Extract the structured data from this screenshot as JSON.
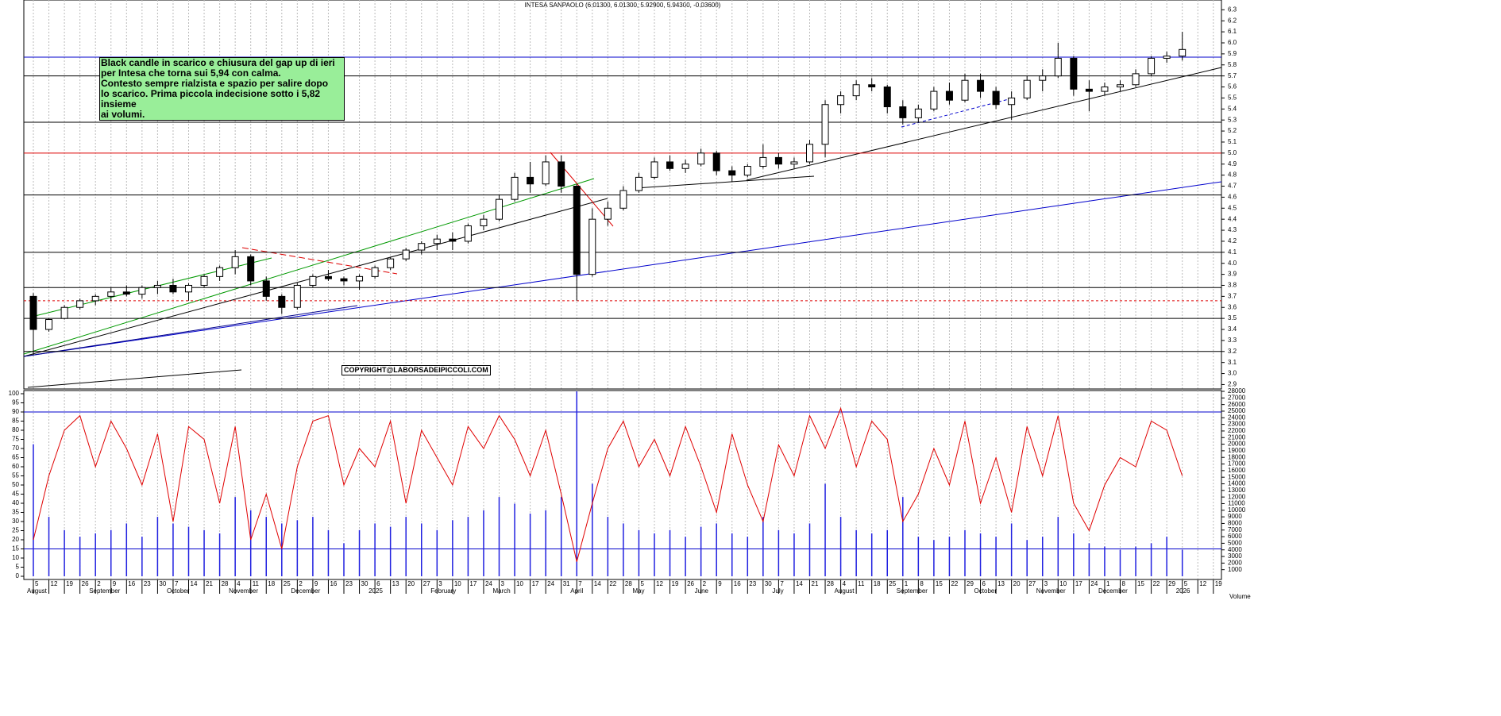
{
  "chart_data": {
    "type": "candlestick",
    "title": "INTESA SANPAOLO (6.01300, 6.01300, 5.92900, 5.94300, -0.03600)",
    "annotation": [
      "Black candle in scarico e chiusura del gap up di ieri",
      "per Intesa che torna sui 5,94 con calma.",
      "Contesto sempre rialzista e spazio per salire dopo",
      "lo scarico. Prima piccola indecisione sotto i 5,82 insieme",
      "ai volumi."
    ],
    "copyright": "COPYRIGHT@LABORSADEIPICCOLI.COM",
    "categories": [
      "5",
      "12",
      "19",
      "26",
      "2",
      "9",
      "16",
      "23",
      "30",
      "7",
      "14",
      "21",
      "28",
      "4",
      "11",
      "18",
      "25",
      "2",
      "9",
      "16",
      "23",
      "30",
      "6",
      "13",
      "20",
      "27",
      "3",
      "10",
      "17",
      "24",
      "3",
      "10",
      "17",
      "24",
      "31",
      "7",
      "14",
      "22",
      "28",
      "5",
      "12",
      "19",
      "26",
      "2",
      "9",
      "16",
      "23",
      "30",
      "7",
      "14",
      "21",
      "28",
      "4",
      "11",
      "18",
      "25",
      "1",
      "8",
      "15",
      "22",
      "29",
      "6",
      "13",
      "20",
      "27",
      "3",
      "10",
      "17",
      "24",
      "1",
      "8",
      "15",
      "22",
      "29",
      "5",
      "12",
      "19"
    ],
    "months": [
      "August",
      null,
      null,
      null,
      "September",
      null,
      null,
      null,
      null,
      "October",
      null,
      null,
      null,
      "November",
      null,
      null,
      null,
      "December",
      null,
      null,
      null,
      null,
      "2025",
      null,
      null,
      null,
      "February",
      null,
      null,
      null,
      "March",
      null,
      null,
      null,
      null,
      "April",
      null,
      null,
      null,
      "May",
      null,
      null,
      null,
      "June",
      null,
      null,
      null,
      null,
      "July",
      null,
      null,
      null,
      "August",
      null,
      null,
      null,
      "September",
      null,
      null,
      null,
      null,
      "October",
      null,
      null,
      null,
      "November",
      null,
      null,
      null,
      "December",
      null,
      null,
      null,
      null,
      "2026",
      null,
      null
    ],
    "open": [
      3.7,
      3.4,
      3.5,
      3.6,
      3.66,
      3.7,
      3.74,
      3.72,
      3.78,
      3.8,
      3.74,
      3.8,
      3.88,
      3.96,
      4.06,
      3.84,
      3.7,
      3.6,
      3.8,
      3.88,
      3.86,
      3.84,
      3.88,
      3.96,
      4.04,
      4.12,
      4.18,
      4.22,
      4.2,
      4.34,
      4.4,
      4.58,
      4.78,
      4.72,
      4.92,
      4.7,
      3.9,
      4.4,
      4.5,
      4.66,
      4.78,
      4.92,
      4.86,
      4.9,
      5.0,
      4.84,
      4.8,
      4.88,
      4.96,
      4.9,
      4.92,
      5.08,
      5.44,
      5.52,
      5.62,
      5.6,
      5.42,
      5.32,
      5.4,
      5.56,
      5.48,
      5.66,
      5.56,
      5.44,
      5.5,
      5.66,
      5.7,
      5.86,
      5.58,
      5.56,
      5.6,
      5.62,
      5.72,
      5.86,
      5.88,
      null,
      null
    ],
    "high": [
      3.73,
      3.5,
      3.62,
      3.68,
      3.72,
      3.78,
      3.8,
      3.8,
      3.84,
      3.86,
      3.82,
      3.9,
      3.98,
      4.12,
      4.08,
      3.88,
      3.72,
      3.82,
      3.9,
      3.94,
      3.88,
      3.9,
      3.98,
      4.06,
      4.14,
      4.2,
      4.26,
      4.28,
      4.36,
      4.44,
      4.62,
      4.82,
      4.92,
      4.98,
      4.98,
      4.72,
      4.5,
      4.56,
      4.7,
      4.82,
      4.96,
      4.98,
      4.94,
      5.04,
      5.02,
      4.88,
      4.9,
      5.08,
      5.0,
      4.96,
      5.12,
      5.48,
      5.56,
      5.66,
      5.68,
      5.62,
      5.48,
      5.44,
      5.6,
      5.64,
      5.72,
      5.72,
      5.6,
      5.56,
      5.7,
      5.76,
      6.0,
      5.88,
      5.66,
      5.64,
      5.66,
      5.76,
      5.88,
      5.92,
      6.1,
      null,
      null
    ],
    "low": [
      3.17,
      3.38,
      3.49,
      3.58,
      3.62,
      3.66,
      3.7,
      3.68,
      3.72,
      3.72,
      3.66,
      3.78,
      3.84,
      3.9,
      3.8,
      3.66,
      3.54,
      3.58,
      3.78,
      3.84,
      3.8,
      3.76,
      3.86,
      3.94,
      4.02,
      4.08,
      4.12,
      4.12,
      4.18,
      4.3,
      4.38,
      4.56,
      4.64,
      4.7,
      4.64,
      3.66,
      3.88,
      4.34,
      4.48,
      4.64,
      4.76,
      4.84,
      4.82,
      4.88,
      4.8,
      4.74,
      4.78,
      4.86,
      4.86,
      4.86,
      4.9,
      4.96,
      5.36,
      5.48,
      5.56,
      5.36,
      5.26,
      5.28,
      5.38,
      5.44,
      5.46,
      5.5,
      5.4,
      5.3,
      5.48,
      5.56,
      5.68,
      5.52,
      5.38,
      5.52,
      5.56,
      5.6,
      5.7,
      5.82,
      5.84,
      null,
      null
    ],
    "close": [
      3.4,
      3.49,
      3.6,
      3.66,
      3.7,
      3.74,
      3.72,
      3.78,
      3.8,
      3.74,
      3.8,
      3.88,
      3.96,
      4.06,
      3.84,
      3.7,
      3.6,
      3.8,
      3.88,
      3.86,
      3.84,
      3.88,
      3.96,
      4.04,
      4.12,
      4.18,
      4.22,
      4.2,
      4.34,
      4.4,
      4.58,
      4.78,
      4.72,
      4.92,
      4.7,
      3.9,
      4.4,
      4.5,
      4.66,
      4.78,
      4.92,
      4.86,
      4.9,
      5.0,
      4.84,
      4.8,
      4.88,
      4.96,
      4.9,
      4.92,
      5.08,
      5.44,
      5.52,
      5.62,
      5.6,
      5.42,
      5.32,
      5.4,
      5.56,
      5.48,
      5.66,
      5.56,
      5.44,
      5.5,
      5.66,
      5.7,
      5.86,
      5.58,
      5.56,
      5.6,
      5.62,
      5.72,
      5.86,
      5.88,
      5.94,
      null,
      null
    ],
    "ylim": [
      2.86,
      6.36
    ],
    "yticks": [
      2.9,
      {
        "value": 3,
        "label": "3.0"
      },
      3.1,
      3.2,
      3.3,
      3.4,
      3.5,
      3.6,
      3.7,
      3.8,
      3.9,
      {
        "value": 4,
        "label": "4.0"
      },
      4.1,
      4.2,
      4.3,
      4.4,
      4.5,
      4.6,
      4.7,
      4.8,
      4.9,
      {
        "value": 5,
        "label": "5.0"
      },
      5.1,
      5.2,
      5.3,
      5.4,
      5.5,
      5.6,
      5.7,
      5.8,
      5.9,
      {
        "value": 6,
        "label": "6.0"
      },
      6.1,
      6.2,
      6.3
    ],
    "levels": [
      {
        "value": 5.87,
        "color": "#0000cc",
        "style": "solid"
      },
      {
        "value": 5.7,
        "color": "#000000",
        "style": "solid"
      },
      {
        "value": 5.28,
        "color": "#000000",
        "style": "solid"
      },
      {
        "value": 5.0,
        "color": "#dd0000",
        "style": "solid"
      },
      {
        "value": 4.62,
        "color": "#000000",
        "style": "solid"
      },
      {
        "value": 4.1,
        "color": "#000000",
        "style": "solid"
      },
      {
        "value": 3.78,
        "color": "#000000",
        "style": "solid"
      },
      {
        "value": 3.66,
        "color": "#dd0000",
        "style": "dashed"
      },
      {
        "value": 3.5,
        "color": "#000000",
        "style": "solid"
      },
      {
        "value": 3.2,
        "color": "#000000",
        "style": "solid"
      },
      {
        "value": 2.86,
        "color": "#000000",
        "style": "solid"
      }
    ],
    "oscillator": {
      "color": "#e00000",
      "ylim": [
        0,
        100
      ],
      "yticks": [
        0,
        5,
        10,
        15,
        20,
        25,
        30,
        35,
        40,
        45,
        50,
        55,
        60,
        65,
        70,
        75,
        80,
        85,
        90,
        95,
        100
      ],
      "levels": [
        15,
        90
      ],
      "values": [
        20,
        55,
        80,
        88,
        60,
        85,
        70,
        50,
        78,
        30,
        82,
        75,
        40,
        82,
        20,
        45,
        15,
        60,
        85,
        88,
        50,
        70,
        60,
        85,
        40,
        80,
        65,
        50,
        82,
        70,
        88,
        75,
        55,
        80,
        45,
        8,
        40,
        70,
        85,
        60,
        75,
        55,
        82,
        60,
        35,
        78,
        50,
        30,
        72,
        55,
        88,
        70,
        92,
        60,
        85,
        75,
        30,
        45,
        70,
        50,
        85,
        40,
        65,
        35,
        82,
        55,
        88,
        40,
        25,
        50,
        65,
        60,
        85,
        80,
        55,
        null,
        null
      ]
    },
    "volume": {
      "name": "Volume",
      "color": "#2020e0",
      "y2lim": [
        0,
        28000
      ],
      "y2ticks": [
        1000,
        2000,
        3000,
        4000,
        5000,
        6000,
        7000,
        8000,
        9000,
        10000,
        11000,
        12000,
        13000,
        14000,
        15000,
        16000,
        17000,
        18000,
        19000,
        20000,
        21000,
        22000,
        23000,
        24000,
        25000,
        26000,
        27000,
        28000
      ],
      "values": [
        20000,
        9000,
        7000,
        6000,
        6500,
        7000,
        8000,
        6000,
        9000,
        8000,
        7500,
        7000,
        6500,
        12000,
        10000,
        9000,
        8000,
        8500,
        9000,
        7000,
        5000,
        7000,
        8000,
        7500,
        9000,
        8000,
        7000,
        8500,
        9000,
        10000,
        12000,
        11000,
        9500,
        10000,
        12000,
        28000,
        14000,
        9000,
        8000,
        7000,
        6500,
        7000,
        6000,
        7500,
        8000,
        6500,
        6000,
        9000,
        7000,
        6500,
        8000,
        14000,
        9000,
        7000,
        6500,
        7000,
        12000,
        6000,
        5500,
        6000,
        7000,
        6500,
        6000,
        8000,
        5500,
        6000,
        9000,
        6500,
        5000,
        4500,
        4000,
        4500,
        5000,
        6000,
        4000,
        null,
        null
      ]
    }
  }
}
